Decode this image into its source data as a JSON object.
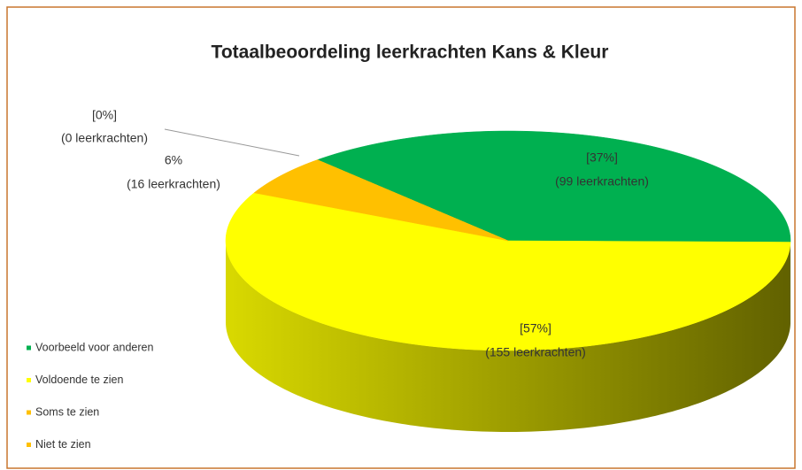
{
  "chart_data": {
    "type": "pie3d",
    "title": "Totaalbeoordeling leerkrachten Kans & Kleur",
    "categories": [
      "Voorbeeld voor anderen",
      "Voldoende te zien",
      "Soms te zien",
      "Niet te zien"
    ],
    "values": [
      37,
      57,
      6,
      0
    ],
    "value_labels": [
      "[37%]",
      "[57%]",
      "6%",
      "[0%]"
    ],
    "count_labels": [
      "(99 leerkrachten)",
      "(155 leerkrachten)",
      "(16 leerkrachten)",
      "(0 leerkrachten)"
    ],
    "colors": [
      "#00b050",
      "#ffff00",
      "#ffc000",
      "#ffc000"
    ],
    "legend": "bottom-left"
  }
}
